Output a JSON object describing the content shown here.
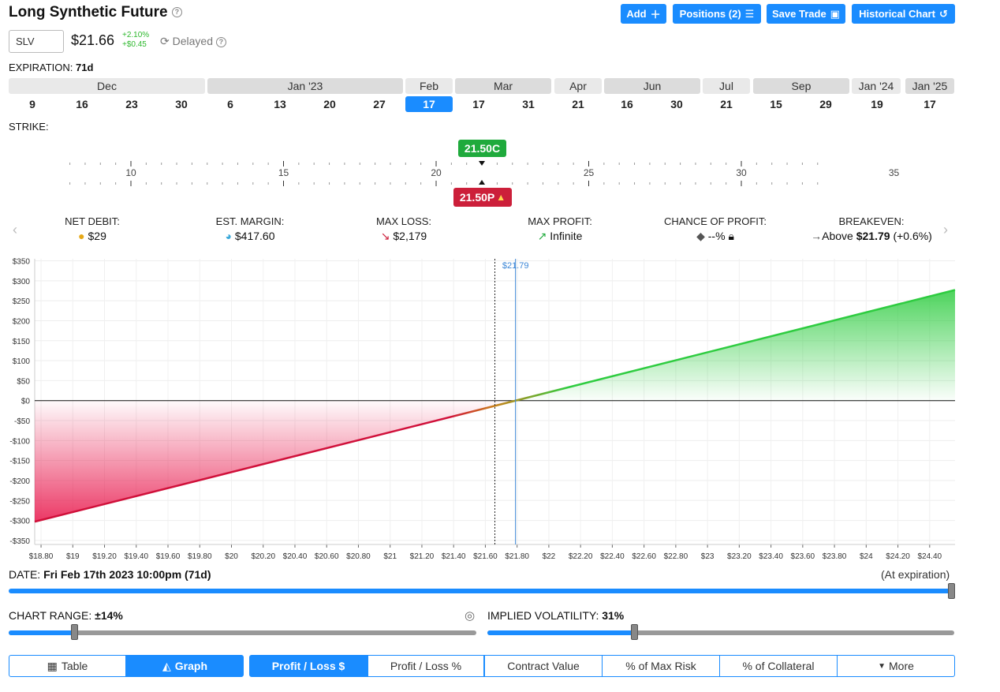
{
  "header": {
    "title": "Long Synthetic Future",
    "buttons": {
      "add": "Add",
      "positions": "Positions (2)",
      "save_trade": "Save Trade",
      "historical_chart": "Historical Chart"
    }
  },
  "quote": {
    "symbol": "SLV",
    "price": "$21.66",
    "change_pct": "+2.10%",
    "change_abs": "+$0.45",
    "delayed": "Delayed"
  },
  "expiration": {
    "label": "EXPIRATION:",
    "days": "71d",
    "months": [
      "Dec",
      "Jan '23",
      "Feb",
      "Mar",
      "Apr",
      "Jun",
      "Jul",
      "Sep",
      "Jan '24",
      "Jan '25"
    ],
    "dates": [
      "9",
      "16",
      "23",
      "30",
      "6",
      "13",
      "20",
      "27",
      "17",
      "17",
      "31",
      "21",
      "16",
      "30",
      "21",
      "15",
      "29",
      "19",
      "17"
    ],
    "selected_index": 8
  },
  "strike": {
    "label": "STRIKE:",
    "ticks": [
      "10",
      "15",
      "20",
      "25",
      "30",
      "35"
    ],
    "call_badge": "21.50C",
    "put_badge": "21.50P",
    "warning_icon": "warning-icon"
  },
  "stats": {
    "net_debit": {
      "label": "NET DEBIT:",
      "value": "$29"
    },
    "est_margin": {
      "label": "EST. MARGIN:",
      "value": "$417.60"
    },
    "max_loss": {
      "label": "MAX LOSS:",
      "value": "$2,179"
    },
    "max_profit": {
      "label": "MAX PROFIT:",
      "value": "Infinite"
    },
    "chance_profit": {
      "label": "CHANCE OF PROFIT:",
      "value": "--%"
    },
    "breakeven": {
      "label": "BREAKEVEN:",
      "prefix": "Above",
      "value": "$21.79",
      "suffix": "(+0.6%)"
    }
  },
  "chart_data": {
    "type": "line",
    "title": "",
    "xlabel": "",
    "ylabel": "",
    "xlim": [
      18.76,
      24.56
    ],
    "ylim": [
      -360,
      355
    ],
    "x_ticks": [
      "$18.80",
      "$19",
      "$19.20",
      "$19.40",
      "$19.60",
      "$19.80",
      "$20",
      "$20.20",
      "$20.40",
      "$20.60",
      "$20.80",
      "$21",
      "$21.20",
      "$21.40",
      "$21.60",
      "$21.80",
      "$22",
      "$22.20",
      "$22.40",
      "$22.60",
      "$22.80",
      "$23",
      "$23.20",
      "$23.40",
      "$23.60",
      "$23.80",
      "$24",
      "$24.20",
      "$24.40"
    ],
    "y_ticks": [
      "$350",
      "$300",
      "$250",
      "$200",
      "$150",
      "$100",
      "$50",
      "$0",
      "-$50",
      "-$100",
      "-$150",
      "-$200",
      "-$250",
      "-$300",
      "-$350"
    ],
    "series": [
      {
        "x": [
          18.76,
          21.79,
          24.56
        ],
        "values": [
          -303,
          0,
          277
        ]
      }
    ],
    "breakeven_marker": {
      "x": 21.79,
      "label": "$21.79"
    },
    "current_price_marker": {
      "x": 21.66
    },
    "grid": true,
    "colors": {
      "profit": "#2ecc40",
      "loss": "#d0103a",
      "breakeven": "#3b86d6"
    }
  },
  "date": {
    "label": "DATE:",
    "value": "Fri Feb 17th 2023 10:00pm (71d)",
    "right": "(At expiration)",
    "slider_fraction": 1.0
  },
  "chart_range": {
    "label": "CHART RANGE:",
    "value": "±14%",
    "slider_fraction": 0.14
  },
  "implied_vol": {
    "label": "IMPLIED VOLATILITY:",
    "value": "31%",
    "slider_fraction": 0.32
  },
  "views": {
    "table": "Table",
    "graph": "Graph",
    "pl_dollar": "Profit / Loss $",
    "pl_pct": "Profit / Loss %",
    "contract_value": "Contract Value",
    "max_risk": "% of Max Risk",
    "collateral": "% of Collateral",
    "more": "More"
  },
  "colors": {
    "accent": "#1a8cff",
    "call": "#1faa3c",
    "put": "#cc1f3a"
  }
}
